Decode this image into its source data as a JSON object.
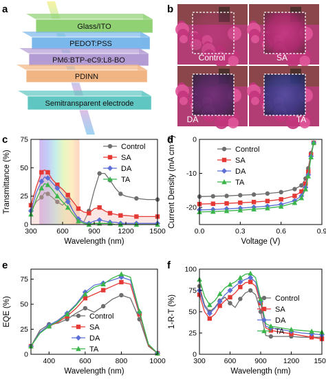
{
  "panel_letters": {
    "a": "a",
    "b": "b",
    "c": "c",
    "d": "d",
    "e": "e",
    "f": "f"
  },
  "device_layers": [
    {
      "label": "Glass/ITO",
      "color": "#8fd173"
    },
    {
      "label": "PEDOT:PSS",
      "color": "#7ab7ea"
    },
    {
      "label": "PM6:BTP-eC9:L8-BO",
      "color": "#b39bd4"
    },
    {
      "label": "PDINN",
      "color": "#f1b583"
    },
    {
      "label": "Semitransparent electrode",
      "color": "#5fc6c2"
    }
  ],
  "photo_labels": [
    "Control",
    "SA",
    "DA",
    "TA"
  ],
  "series_styles": [
    {
      "name": "Control",
      "color": "#6e6e6e",
      "marker": "circle"
    },
    {
      "name": "SA",
      "color": "#e53935",
      "marker": "square"
    },
    {
      "name": "DA",
      "color": "#5b6fd6",
      "marker": "diamond"
    },
    {
      "name": "TA",
      "color": "#3ab54a",
      "marker": "triangle"
    }
  ],
  "chart_data": [
    {
      "id": "c",
      "type": "line",
      "xlabel": "Wavelength (nm)",
      "ylabel": "Transmittance (%)",
      "xlim": [
        300,
        1500
      ],
      "ylim": [
        0,
        75
      ],
      "xticks": [
        300,
        600,
        900,
        1200,
        1500
      ],
      "yticks": [
        0,
        25,
        50,
        75
      ],
      "legend": "top-right",
      "visible_band_nm": [
        380,
        760
      ],
      "series": [
        {
          "name": "Control",
          "x": [
            300,
            350,
            400,
            430,
            460,
            500,
            550,
            600,
            650,
            700,
            750,
            800,
            850,
            900,
            950,
            1000,
            1050,
            1100,
            1150,
            1200,
            1300,
            1400,
            1500
          ],
          "y": [
            12,
            20,
            24,
            28,
            27,
            24,
            20,
            17,
            22,
            12,
            4,
            2,
            12,
            30,
            45,
            45,
            39,
            32,
            27,
            25,
            23,
            22,
            22
          ]
        },
        {
          "name": "SA",
          "x": [
            300,
            350,
            400,
            430,
            460,
            500,
            550,
            600,
            650,
            700,
            750,
            800,
            850,
            900,
            950,
            1000,
            1050,
            1100,
            1150,
            1200,
            1300,
            1400,
            1500
          ],
          "y": [
            17,
            33,
            46,
            48,
            46,
            40,
            35,
            31,
            26,
            20,
            14,
            11,
            10,
            14,
            15,
            12,
            10,
            9,
            8,
            8,
            7,
            7,
            7
          ]
        },
        {
          "name": "DA",
          "x": [
            300,
            350,
            400,
            430,
            460,
            500,
            550,
            600,
            650,
            700,
            750,
            800,
            850,
            900,
            950,
            1000,
            1050,
            1100,
            1150,
            1200,
            1300,
            1400,
            1500
          ],
          "y": [
            12,
            28,
            38,
            42,
            41,
            37,
            32,
            26,
            20,
            12,
            5,
            2,
            1,
            3,
            4,
            3,
            2,
            2,
            1,
            1,
            1,
            1,
            1
          ]
        },
        {
          "name": "TA",
          "x": [
            300,
            350,
            400,
            430,
            460,
            500,
            550,
            600,
            650,
            700,
            750,
            800,
            850,
            900,
            950,
            1000,
            1050,
            1100,
            1150,
            1200,
            1300,
            1400,
            1500
          ],
          "y": [
            9,
            22,
            32,
            36,
            35,
            31,
            25,
            20,
            15,
            9,
            3,
            1,
            0,
            1,
            1,
            1,
            1,
            0,
            0,
            0,
            0,
            0,
            0
          ]
        }
      ]
    },
    {
      "id": "d",
      "type": "line",
      "xlabel": "Voltage (V)",
      "ylabel": "Current Density (mA cm⁻²)",
      "xlim": [
        0.0,
        0.9
      ],
      "ylim": [
        -25,
        0
      ],
      "xticks": [
        0.0,
        0.3,
        0.6,
        0.9
      ],
      "yticks": [
        0,
        -10,
        -20
      ],
      "legend": "top-left",
      "series": [
        {
          "name": "Control",
          "x": [
            0.0,
            0.1,
            0.2,
            0.3,
            0.4,
            0.5,
            0.6,
            0.7,
            0.75,
            0.78,
            0.8,
            0.82,
            0.84
          ],
          "y": [
            -16.8,
            -16.7,
            -16.6,
            -16.4,
            -16.2,
            -15.9,
            -15.5,
            -14.6,
            -13.5,
            -11.5,
            -8.5,
            -4.0,
            -1.0
          ]
        },
        {
          "name": "SA",
          "x": [
            0.0,
            0.1,
            0.2,
            0.3,
            0.4,
            0.5,
            0.6,
            0.7,
            0.75,
            0.78,
            0.8,
            0.82,
            0.84
          ],
          "y": [
            -19.0,
            -18.9,
            -18.8,
            -18.6,
            -18.4,
            -18.1,
            -17.6,
            -16.6,
            -15.3,
            -13.0,
            -9.5,
            -4.5,
            -1.0
          ]
        },
        {
          "name": "DA",
          "x": [
            0.0,
            0.1,
            0.2,
            0.3,
            0.4,
            0.5,
            0.6,
            0.7,
            0.75,
            0.78,
            0.8,
            0.82,
            0.84
          ],
          "y": [
            -20.7,
            -20.6,
            -20.4,
            -20.2,
            -19.9,
            -19.6,
            -19.1,
            -18.0,
            -16.6,
            -14.1,
            -10.4,
            -5.0,
            -1.0
          ]
        },
        {
          "name": "TA",
          "x": [
            0.0,
            0.1,
            0.2,
            0.3,
            0.4,
            0.5,
            0.6,
            0.7,
            0.75,
            0.78,
            0.8,
            0.82,
            0.84
          ],
          "y": [
            -21.3,
            -21.2,
            -21.0,
            -20.8,
            -20.5,
            -20.2,
            -19.7,
            -18.6,
            -17.2,
            -14.6,
            -10.8,
            -5.2,
            -1.0
          ]
        }
      ]
    },
    {
      "id": "e",
      "type": "line",
      "xlabel": "Wavelength (nm)",
      "ylabel": "EQE (%)",
      "xlim": [
        300,
        1000
      ],
      "ylim": [
        0,
        85
      ],
      "xticks": [
        400,
        600,
        800,
        1000
      ],
      "yticks": [
        0,
        25,
        50,
        75
      ],
      "legend": "bottom-center",
      "series": [
        {
          "name": "Control",
          "x": [
            300,
            350,
            400,
            450,
            500,
            550,
            600,
            650,
            700,
            750,
            800,
            850,
            900,
            950,
            1000
          ],
          "y": [
            8,
            24,
            30,
            31,
            35,
            41,
            46,
            42,
            48,
            55,
            59,
            56,
            35,
            8,
            1
          ]
        },
        {
          "name": "SA",
          "x": [
            300,
            350,
            400,
            450,
            500,
            550,
            600,
            650,
            700,
            750,
            800,
            850,
            900,
            950,
            1000
          ],
          "y": [
            8,
            22,
            28,
            32,
            38,
            46,
            56,
            60,
            64,
            68,
            72,
            70,
            40,
            9,
            1
          ]
        },
        {
          "name": "DA",
          "x": [
            300,
            350,
            400,
            450,
            500,
            550,
            600,
            650,
            700,
            750,
            800,
            850,
            900,
            950,
            1000
          ],
          "y": [
            8,
            22,
            29,
            34,
            41,
            50,
            62,
            69,
            71,
            74,
            77,
            74,
            42,
            10,
            1
          ]
        },
        {
          "name": "TA",
          "x": [
            300,
            350,
            400,
            450,
            500,
            550,
            600,
            650,
            700,
            750,
            800,
            850,
            900,
            950,
            1000
          ],
          "y": [
            8,
            21,
            28,
            33,
            40,
            49,
            60,
            67,
            70,
            76,
            80,
            77,
            43,
            10,
            1
          ]
        }
      ]
    },
    {
      "id": "f",
      "type": "line",
      "xlabel": "Wavelength (nm)",
      "ylabel": "1-R-T (%)",
      "xlim": [
        300,
        1500
      ],
      "ylim": [
        0,
        100
      ],
      "xticks": [
        300,
        600,
        900,
        1200,
        1500
      ],
      "yticks": [
        0,
        25,
        50,
        75,
        100
      ],
      "legend": "right-center",
      "series": [
        {
          "name": "Control",
          "x": [
            300,
            350,
            400,
            450,
            500,
            550,
            600,
            650,
            700,
            750,
            800,
            850,
            900,
            950,
            1000,
            1100,
            1200,
            1300,
            1400,
            1500
          ],
          "y": [
            80,
            58,
            50,
            55,
            63,
            67,
            60,
            55,
            65,
            72,
            75,
            70,
            50,
            22,
            21,
            21,
            21,
            20,
            20,
            20
          ]
        },
        {
          "name": "SA",
          "x": [
            300,
            350,
            400,
            450,
            500,
            550,
            600,
            650,
            700,
            750,
            800,
            850,
            900,
            950,
            1000,
            1100,
            1200,
            1300,
            1400,
            1500
          ],
          "y": [
            70,
            50,
            42,
            47,
            57,
            63,
            67,
            72,
            79,
            84,
            85,
            80,
            60,
            31,
            28,
            26,
            24,
            22,
            20,
            18
          ]
        },
        {
          "name": "DA",
          "x": [
            300,
            350,
            400,
            450,
            500,
            550,
            600,
            650,
            700,
            750,
            800,
            850,
            900,
            950,
            1000,
            1100,
            1200,
            1300,
            1400,
            1500
          ],
          "y": [
            75,
            56,
            48,
            54,
            62,
            70,
            75,
            80,
            85,
            88,
            90,
            85,
            62,
            33,
            31,
            29,
            27,
            25,
            24,
            23
          ]
        },
        {
          "name": "TA",
          "x": [
            300,
            350,
            400,
            450,
            500,
            550,
            600,
            650,
            700,
            750,
            800,
            850,
            900,
            950,
            1000,
            1100,
            1200,
            1300,
            1400,
            1500
          ],
          "y": [
            88,
            68,
            58,
            63,
            71,
            78,
            82,
            85,
            90,
            94,
            95,
            90,
            65,
            36,
            33,
            31,
            29,
            28,
            27,
            26
          ]
        }
      ]
    }
  ]
}
